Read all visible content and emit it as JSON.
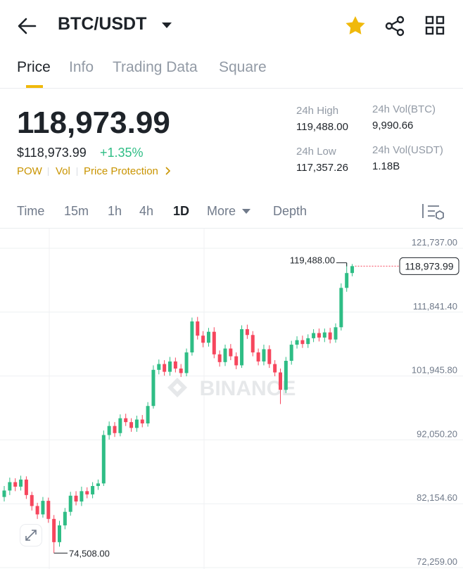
{
  "header": {
    "pair": "BTC/USDT"
  },
  "tabs": [
    "Price",
    "Info",
    "Trading Data",
    "Square"
  ],
  "price": {
    "last": "118,973.99",
    "usd": "$118,973.99",
    "change": "+1.35%",
    "tags": [
      "POW",
      "Vol",
      "Price Protection"
    ]
  },
  "stats": [
    {
      "label": "24h High",
      "value": "119,488.00"
    },
    {
      "label": "24h Vol(BTC)",
      "value": "9,990.66"
    },
    {
      "label": "24h Low",
      "value": "117,357.26"
    },
    {
      "label": "24h Vol(USDT)",
      "value": "1.18B"
    }
  ],
  "intervals": [
    "Time",
    "15m",
    "1h",
    "4h",
    "1D",
    "More",
    "Depth"
  ],
  "chart_data": {
    "type": "candlestick",
    "watermark": "BINANCE",
    "up_color": "#2ebd85",
    "down_color": "#f6465d",
    "open": [
      83200,
      84200,
      85500,
      84800,
      85900,
      83500,
      81800,
      80500,
      82600,
      79800,
      76200,
      78800,
      80900,
      83400,
      82500,
      84100,
      83600,
      84900,
      85300,
      92800,
      94200,
      93100,
      95400,
      94800,
      93900,
      95200,
      94600,
      97300,
      102900,
      103800,
      102600,
      104200,
      103100,
      102400,
      105600,
      110400,
      108200,
      107100,
      108800,
      105300,
      104100,
      106200,
      105000,
      103600,
      109200,
      108300,
      105600,
      104200,
      106100,
      103800,
      102500,
      99800,
      104300,
      106800,
      107500,
      106900,
      107800,
      108600,
      107900,
      108700,
      107600,
      109500,
      115600,
      117900
    ],
    "high": [
      84900,
      86200,
      86100,
      86500,
      86400,
      84000,
      82300,
      83200,
      83100,
      80400,
      79500,
      81500,
      84000,
      84100,
      84800,
      84700,
      85500,
      85900,
      93500,
      94900,
      94800,
      96000,
      96100,
      95400,
      95800,
      95900,
      97900,
      103600,
      104500,
      104400,
      104900,
      104800,
      103800,
      106200,
      111000,
      111100,
      108900,
      109400,
      109500,
      105900,
      106800,
      106900,
      105600,
      109800,
      109900,
      108900,
      106200,
      106800,
      106700,
      104400,
      103100,
      104900,
      107400,
      108100,
      108200,
      108400,
      109200,
      109300,
      109300,
      109400,
      110100,
      116300,
      119488,
      119300
    ],
    "low": [
      82500,
      83500,
      84100,
      84200,
      82900,
      81100,
      79800,
      80000,
      79200,
      74508,
      75500,
      78200,
      80300,
      81900,
      81800,
      83000,
      83000,
      84300,
      84900,
      92100,
      92500,
      92600,
      94200,
      93300,
      93300,
      94000,
      94100,
      96900,
      102200,
      102000,
      102000,
      102500,
      101800,
      101900,
      105100,
      107600,
      106400,
      106500,
      104700,
      103400,
      103500,
      104400,
      103000,
      103200,
      107700,
      105000,
      103600,
      103600,
      103200,
      101900,
      97600,
      99300,
      103700,
      106200,
      106300,
      106300,
      107200,
      107300,
      107200,
      107000,
      107100,
      109000,
      115000,
      117400
    ],
    "close": [
      84200,
      85500,
      84800,
      85900,
      83500,
      81800,
      80500,
      82600,
      79800,
      76200,
      78800,
      80900,
      83400,
      82500,
      84100,
      83600,
      84900,
      85300,
      92800,
      94200,
      93100,
      95400,
      94800,
      93900,
      95200,
      94600,
      97300,
      102900,
      103800,
      102600,
      104200,
      103100,
      102400,
      105600,
      110400,
      108200,
      107100,
      108800,
      105300,
      104100,
      106200,
      105000,
      103600,
      109200,
      108300,
      105600,
      104200,
      106100,
      103800,
      102500,
      99800,
      104300,
      106800,
      107500,
      106900,
      107800,
      108600,
      107900,
      108700,
      107600,
      109500,
      115600,
      117900,
      118973.99
    ],
    "ylim": [
      72041,
      124788
    ],
    "yticks": [
      {
        "value": 72259,
        "label": "72,259.00"
      },
      {
        "value": 82154.6,
        "label": "82,154.60"
      },
      {
        "value": 92050.2,
        "label": "92,050.20"
      },
      {
        "value": 101945.8,
        "label": "101,945.80"
      },
      {
        "value": 111841.4,
        "label": "111,841.40"
      },
      {
        "value": 121737,
        "label": "121,737.00"
      }
    ],
    "grid": true,
    "high_label": {
      "value": 119488,
      "label": "119,488.00"
    },
    "low_label": {
      "value": 74508,
      "label": "74,508.00"
    },
    "last_label": {
      "value": 118973.99,
      "label": "118,973.99"
    }
  }
}
